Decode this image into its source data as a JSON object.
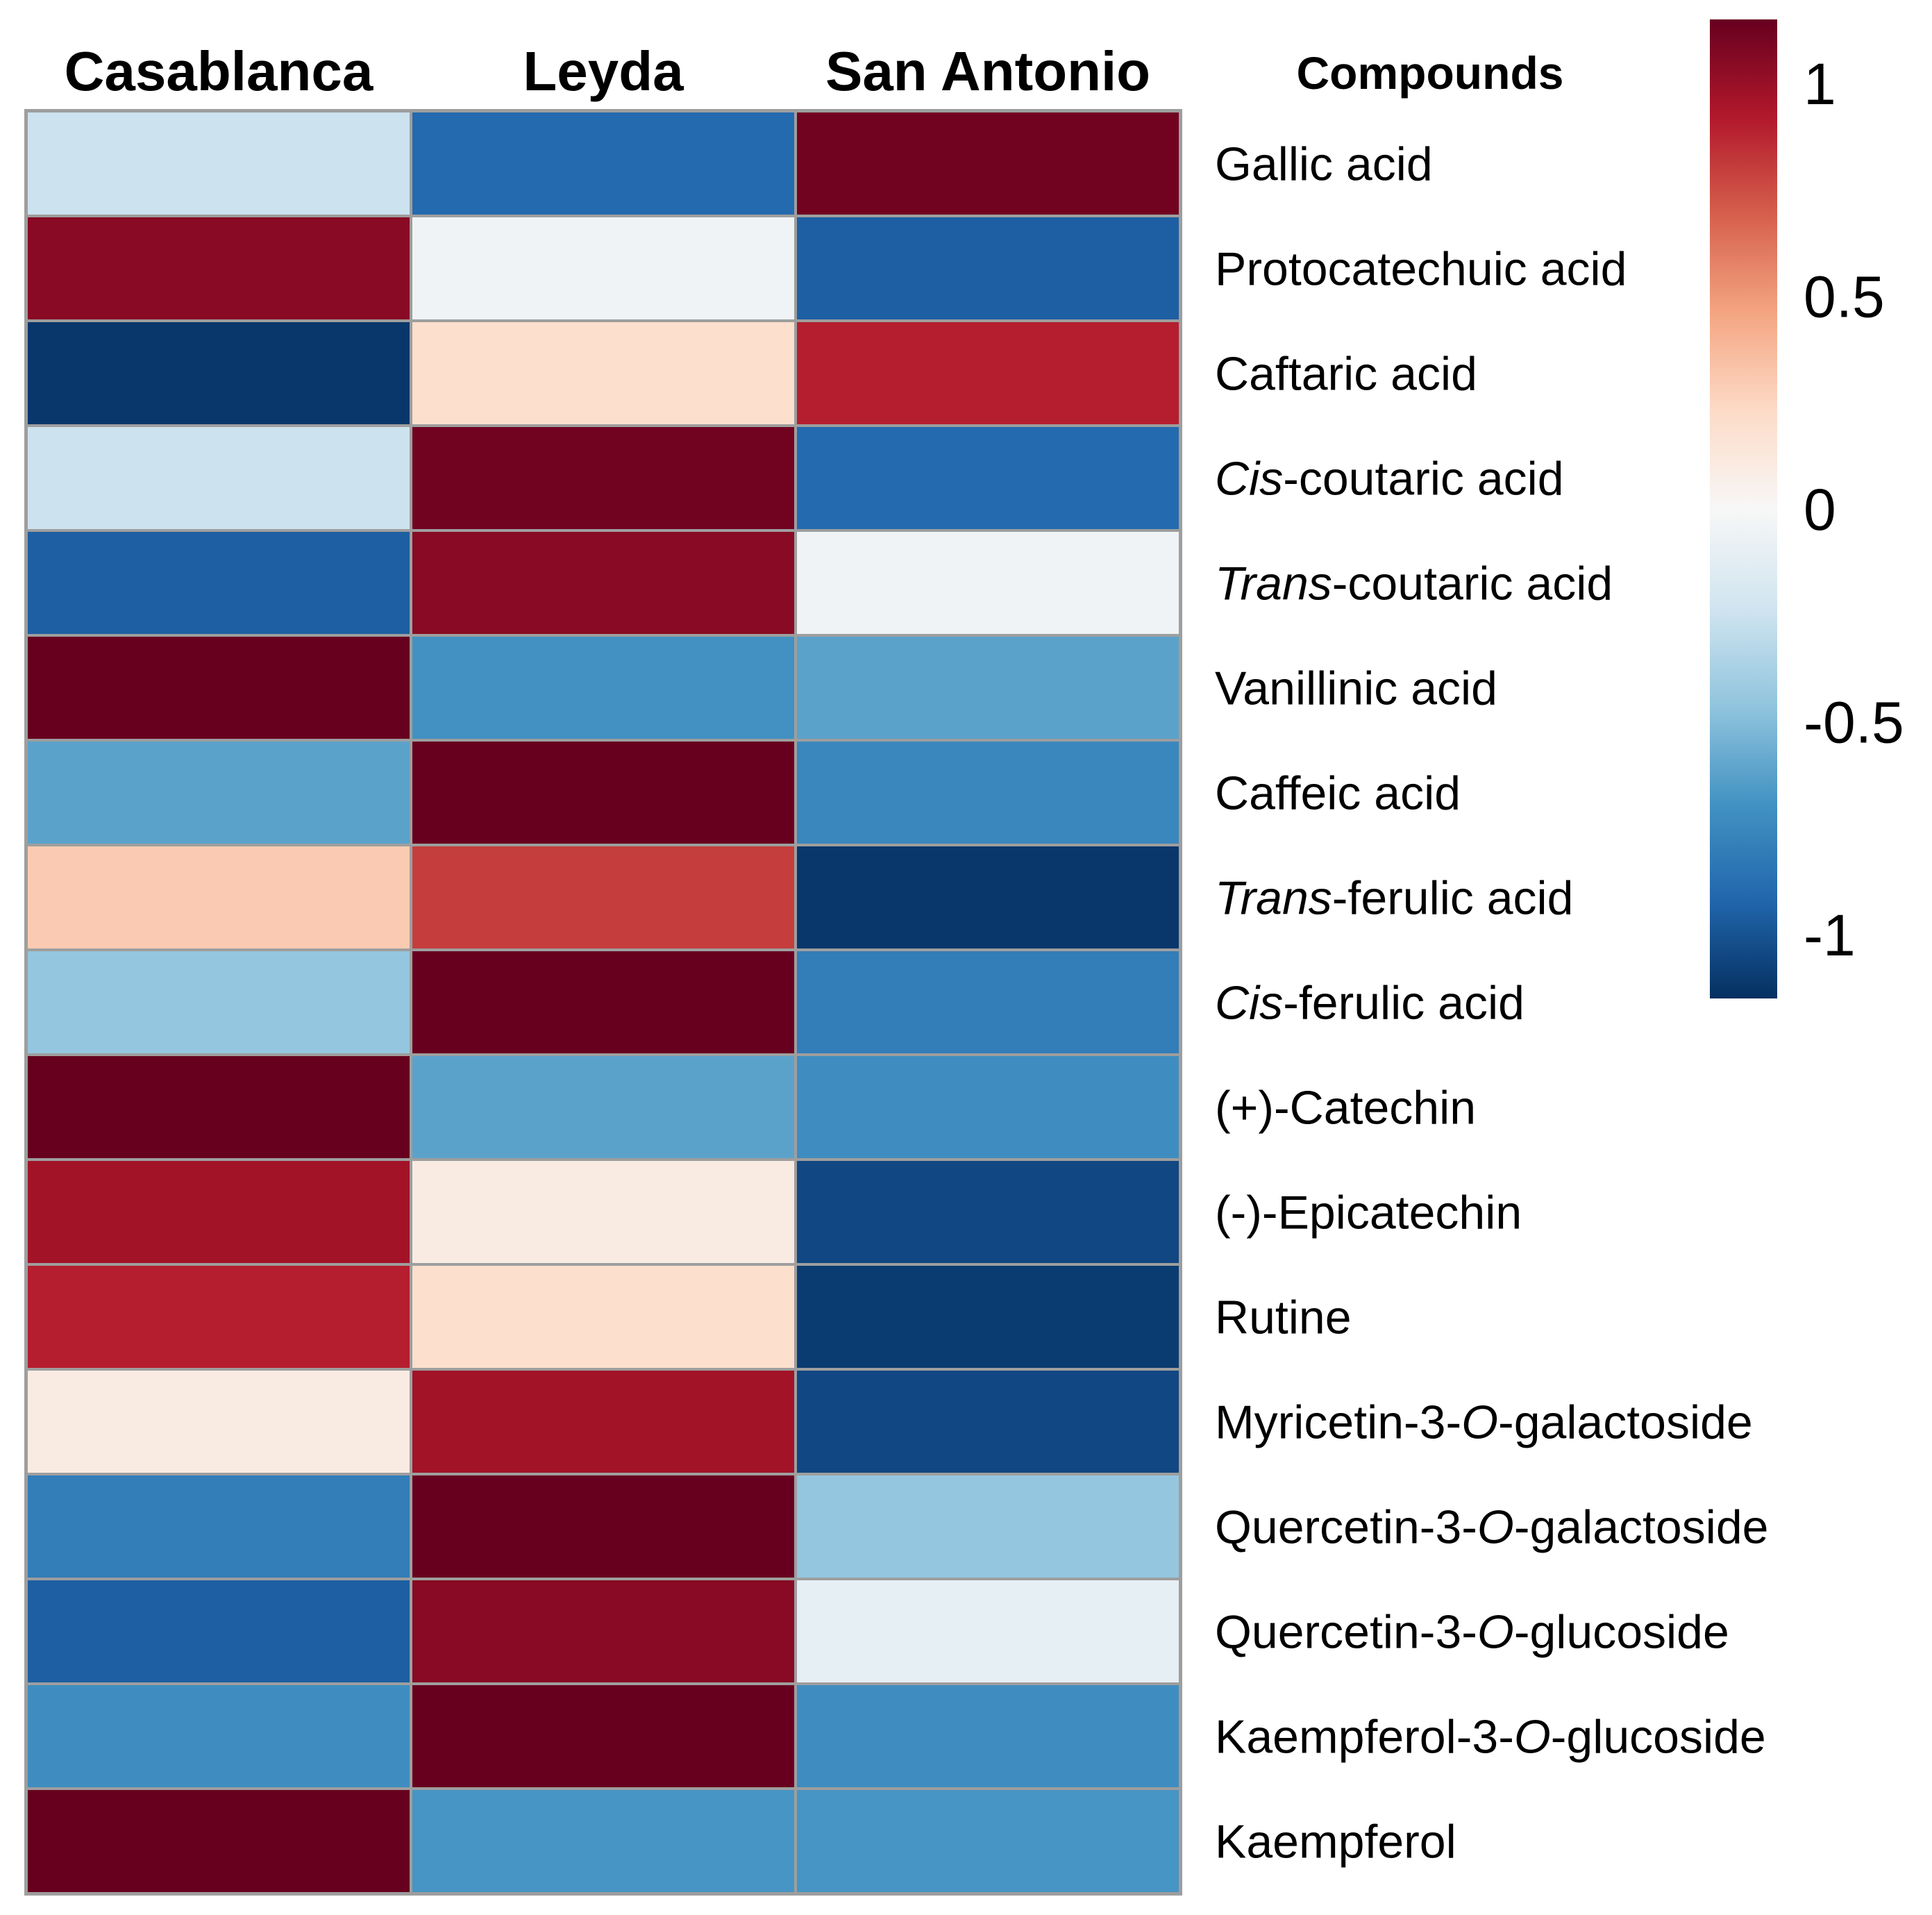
{
  "chart_data": {
    "type": "heatmap",
    "title": "",
    "columns": [
      "Casablanca",
      "Leyda",
      "San Antonio"
    ],
    "row_header": "Compounds",
    "rows": [
      {
        "label": [
          {
            "t": "Gallic acid",
            "i": false
          }
        ]
      },
      {
        "label": [
          {
            "t": "Protocatechuic acid",
            "i": false
          }
        ]
      },
      {
        "label": [
          {
            "t": "Caftaric acid",
            "i": false
          }
        ]
      },
      {
        "label": [
          {
            "t": "Cis",
            "i": true
          },
          {
            "t": "-coutaric acid",
            "i": false
          }
        ]
      },
      {
        "label": [
          {
            "t": "Trans",
            "i": true
          },
          {
            "t": "-coutaric acid",
            "i": false
          }
        ]
      },
      {
        "label": [
          {
            "t": "Vanillinic acid",
            "i": false
          }
        ]
      },
      {
        "label": [
          {
            "t": "Caffeic acid",
            "i": false
          }
        ]
      },
      {
        "label": [
          {
            "t": "Trans",
            "i": true
          },
          {
            "t": "-ferulic acid",
            "i": false
          }
        ]
      },
      {
        "label": [
          {
            "t": "Cis",
            "i": true
          },
          {
            "t": "-ferulic acid",
            "i": false
          }
        ]
      },
      {
        "label": [
          {
            "t": "(+)-Catechin",
            "i": false
          }
        ]
      },
      {
        "label": [
          {
            "t": "(-)-Epicatechin",
            "i": false
          }
        ]
      },
      {
        "label": [
          {
            "t": "Rutine",
            "i": false
          }
        ]
      },
      {
        "label": [
          {
            "t": "Myricetin-3-",
            "i": false
          },
          {
            "t": "O",
            "i": true
          },
          {
            "t": "-galactoside",
            "i": false
          }
        ]
      },
      {
        "label": [
          {
            "t": "Quercetin-3-",
            "i": false
          },
          {
            "t": "O",
            "i": true
          },
          {
            "t": "-galactoside",
            "i": false
          }
        ]
      },
      {
        "label": [
          {
            "t": "Quercetin-3-",
            "i": false
          },
          {
            "t": "O",
            "i": true
          },
          {
            "t": "-glucoside",
            "i": false
          }
        ]
      },
      {
        "label": [
          {
            "t": "Kaempferol-3-",
            "i": false
          },
          {
            "t": "O",
            "i": true
          },
          {
            "t": "-glucoside",
            "i": false
          }
        ]
      },
      {
        "label": [
          {
            "t": "Kaempferol",
            "i": false
          }
        ]
      }
    ],
    "values": [
      [
        -0.25,
        -0.9,
        1.12
      ],
      [
        1.05,
        -0.05,
        -0.95
      ],
      [
        -1.12,
        0.2,
        0.9
      ],
      [
        -0.25,
        1.12,
        -0.9
      ],
      [
        -0.95,
        1.05,
        -0.05
      ],
      [
        1.15,
        -0.7,
        -0.62
      ],
      [
        -0.62,
        1.15,
        -0.75
      ],
      [
        0.3,
        0.8,
        -1.12
      ],
      [
        -0.45,
        1.15,
        -0.8
      ],
      [
        1.15,
        -0.62,
        -0.72
      ],
      [
        0.97,
        0.1,
        -1.05
      ],
      [
        0.9,
        0.2,
        -1.1
      ],
      [
        0.1,
        0.97,
        -1.05
      ],
      [
        -0.8,
        1.15,
        -0.45
      ],
      [
        -0.95,
        1.05,
        -0.1
      ],
      [
        -0.72,
        1.15,
        -0.72
      ],
      [
        1.15,
        -0.68,
        -0.68
      ]
    ],
    "colorbar": {
      "min": -1.15,
      "max": 1.15,
      "ticks": [
        {
          "value": 1,
          "label": "1"
        },
        {
          "value": 0.5,
          "label": "0.5"
        },
        {
          "value": 0,
          "label": "0"
        },
        {
          "value": -0.5,
          "label": "-0.5"
        },
        {
          "value": -1,
          "label": "-1"
        }
      ],
      "palette": [
        "#053061",
        "#2166ac",
        "#4393c3",
        "#92c5de",
        "#d1e5f0",
        "#f7f7f7",
        "#fddbc7",
        "#f4a582",
        "#d6604d",
        "#b2182b",
        "#67001f"
      ]
    }
  }
}
